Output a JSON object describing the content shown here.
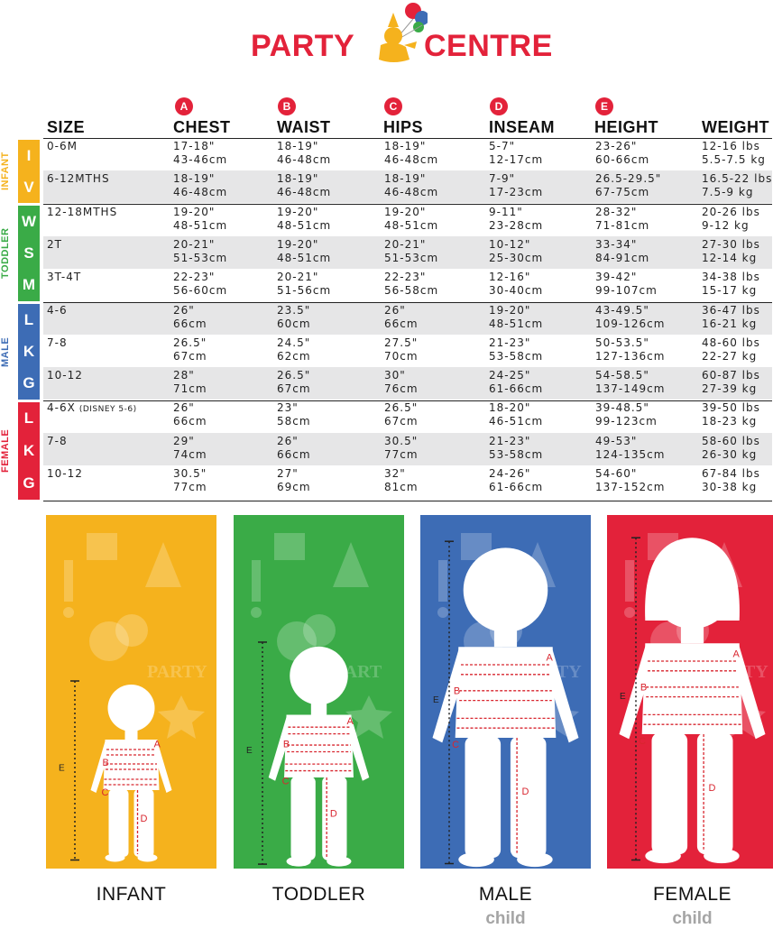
{
  "brand": {
    "party": "PARTY",
    "centre": "CENTRE",
    "red": "#e3223a"
  },
  "letters": [
    "A",
    "B",
    "C",
    "D",
    "E"
  ],
  "headers": {
    "size": "SIZE",
    "chest": "CHEST",
    "waist": "WAIST",
    "hips": "HIPS",
    "inseam": "INSEAM",
    "height": "HEIGHT",
    "weight": "WEIGHT"
  },
  "groups": [
    {
      "name": "INFANT",
      "color": "#f5b21d",
      "codes": [
        "I",
        "V"
      ]
    },
    {
      "name": "TODDLER",
      "color": "#3aab47",
      "codes": [
        "W",
        "S",
        "M"
      ]
    },
    {
      "name": "MALE",
      "color": "#3d6cb5",
      "codes": [
        "L",
        "K",
        "G"
      ]
    },
    {
      "name": "FEMALE",
      "color": "#e3223a",
      "codes": [
        "L",
        "K",
        "G"
      ]
    }
  ],
  "rows": [
    {
      "size": "0-6M",
      "size_note": "",
      "chest": [
        "17-18\"",
        "43-46cm"
      ],
      "waist": [
        "18-19\"",
        "46-48cm"
      ],
      "hips": [
        "18-19\"",
        "46-48cm"
      ],
      "inseam": [
        "5-7\"",
        "12-17cm"
      ],
      "height": [
        "23-26\"",
        "60-66cm"
      ],
      "weight": [
        "12-16 lbs",
        "5.5-7.5 kg"
      ]
    },
    {
      "size": "6-12MTHS",
      "size_note": "",
      "chest": [
        "18-19\"",
        "46-48cm"
      ],
      "waist": [
        "18-19\"",
        "46-48cm"
      ],
      "hips": [
        "18-19\"",
        "46-48cm"
      ],
      "inseam": [
        "7-9\"",
        "17-23cm"
      ],
      "height": [
        "26.5-29.5\"",
        "67-75cm"
      ],
      "weight": [
        "16.5-22 lbs",
        "7.5-9 kg"
      ]
    },
    {
      "size": "12-18MTHS",
      "size_note": "",
      "chest": [
        "19-20\"",
        "48-51cm"
      ],
      "waist": [
        "19-20\"",
        "48-51cm"
      ],
      "hips": [
        "19-20\"",
        "48-51cm"
      ],
      "inseam": [
        "9-11\"",
        "23-28cm"
      ],
      "height": [
        "28-32\"",
        "71-81cm"
      ],
      "weight": [
        "20-26 lbs",
        "9-12 kg"
      ]
    },
    {
      "size": "2T",
      "size_note": "",
      "chest": [
        "20-21\"",
        "51-53cm"
      ],
      "waist": [
        "19-20\"",
        "48-51cm"
      ],
      "hips": [
        "20-21\"",
        "51-53cm"
      ],
      "inseam": [
        "10-12\"",
        "25-30cm"
      ],
      "height": [
        "33-34\"",
        "84-91cm"
      ],
      "weight": [
        "27-30 lbs",
        "12-14 kg"
      ]
    },
    {
      "size": "3T-4T",
      "size_note": "",
      "chest": [
        "22-23\"",
        "56-60cm"
      ],
      "waist": [
        "20-21\"",
        "51-56cm"
      ],
      "hips": [
        "22-23\"",
        "56-58cm"
      ],
      "inseam": [
        "12-16\"",
        "30-40cm"
      ],
      "height": [
        "39-42\"",
        "99-107cm"
      ],
      "weight": [
        "34-38 lbs",
        "15-17 kg"
      ]
    },
    {
      "size": "4-6",
      "size_note": "",
      "chest": [
        "26\"",
        "66cm"
      ],
      "waist": [
        "23.5\"",
        "60cm"
      ],
      "hips": [
        "26\"",
        "66cm"
      ],
      "inseam": [
        "19-20\"",
        "48-51cm"
      ],
      "height": [
        "43-49.5\"",
        "109-126cm"
      ],
      "weight": [
        "36-47 lbs",
        "16-21 kg"
      ]
    },
    {
      "size": "7-8",
      "size_note": "",
      "chest": [
        "26.5\"",
        "67cm"
      ],
      "waist": [
        "24.5\"",
        "62cm"
      ],
      "hips": [
        "27.5\"",
        "70cm"
      ],
      "inseam": [
        "21-23\"",
        "53-58cm"
      ],
      "height": [
        "50-53.5\"",
        "127-136cm"
      ],
      "weight": [
        "48-60 lbs",
        "22-27 kg"
      ]
    },
    {
      "size": "10-12",
      "size_note": "",
      "chest": [
        "28\"",
        "71cm"
      ],
      "waist": [
        "26.5\"",
        "67cm"
      ],
      "hips": [
        "30\"",
        "76cm"
      ],
      "inseam": [
        "24-25\"",
        "61-66cm"
      ],
      "height": [
        "54-58.5\"",
        "137-149cm"
      ],
      "weight": [
        "60-87 lbs",
        "27-39 kg"
      ]
    },
    {
      "size": "4-6X",
      "size_note": "(DISNEY 5-6)",
      "chest": [
        "26\"",
        "66cm"
      ],
      "waist": [
        "23\"",
        "58cm"
      ],
      "hips": [
        "26.5\"",
        "67cm"
      ],
      "inseam": [
        "18-20\"",
        "46-51cm"
      ],
      "height": [
        "39-48.5\"",
        "99-123cm"
      ],
      "weight": [
        "39-50 lbs",
        "18-23 kg"
      ]
    },
    {
      "size": "7-8",
      "size_note": "",
      "chest": [
        "29\"",
        "74cm"
      ],
      "waist": [
        "26\"",
        "66cm"
      ],
      "hips": [
        "30.5\"",
        "77cm"
      ],
      "inseam": [
        "21-23\"",
        "53-58cm"
      ],
      "height": [
        "49-53\"",
        "124-135cm"
      ],
      "weight": [
        "58-60 lbs",
        "26-30 kg"
      ]
    },
    {
      "size": "10-12",
      "size_note": "",
      "chest": [
        "30.5\"",
        "77cm"
      ],
      "waist": [
        "27\"",
        "69cm"
      ],
      "hips": [
        "32\"",
        "81cm"
      ],
      "inseam": [
        "24-26\"",
        "61-66cm"
      ],
      "height": [
        "54-60\"",
        "137-152cm"
      ],
      "weight": [
        "67-84 lbs",
        "30-38 kg"
      ]
    }
  ],
  "panels": [
    {
      "caption": "INFANT",
      "sub": "",
      "color": "#f5b21d",
      "figure": "infant-figure",
      "bg_text": "PARTY"
    },
    {
      "caption": "TODDLER",
      "sub": "",
      "color": "#3aab47",
      "figure": "toddler-figure",
      "bg_text": "PART"
    },
    {
      "caption": "MALE",
      "sub": "child",
      "color": "#3d6cb5",
      "figure": "male-figure",
      "bg_text": "PARTY"
    },
    {
      "caption": "FEMALE",
      "sub": "child",
      "color": "#e3223a",
      "figure": "female-figure",
      "bg_text": "PARTY"
    }
  ]
}
